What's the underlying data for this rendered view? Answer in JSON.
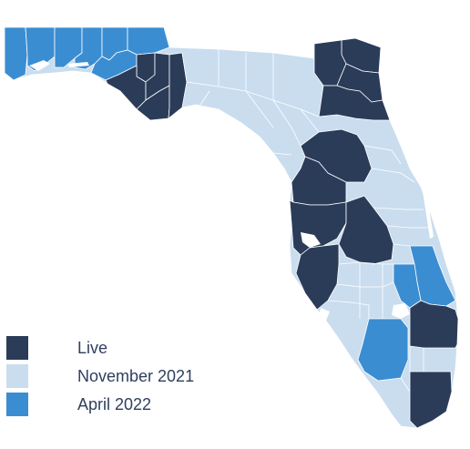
{
  "map": {
    "region": "Florida",
    "colors": {
      "live": "#2b3c59",
      "november_2021": "#c9ddef",
      "april_2022": "#3b8dd2",
      "background": "#ffffff",
      "border": "#ffffff"
    },
    "legend": [
      {
        "key": "live",
        "label": "Live",
        "color": "#2b3c59"
      },
      {
        "key": "november_2021",
        "label": "November 2021",
        "color": "#c9ddef"
      },
      {
        "key": "april_2022",
        "label": "April 2022",
        "color": "#3b8dd2"
      }
    ]
  }
}
